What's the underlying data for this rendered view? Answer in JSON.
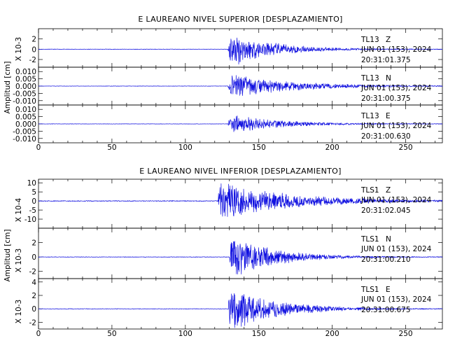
{
  "chart_data": [
    {
      "type": "line",
      "title": "E LAUREANO NIVEL SUPERIOR [DESPLAZAMIENTO]",
      "ylabel": "Amplitud [cm]",
      "xlim": [
        0,
        275
      ],
      "x_ticks": [
        "0",
        "50",
        "100",
        "150",
        "200",
        "250"
      ],
      "panels": [
        {
          "station": "TL13",
          "component": "Z",
          "date": "JUN 01 (153), 2024",
          "time": "20:31:01.375",
          "scale_label": "X 10-3",
          "ylim": [
            -3.5,
            4
          ],
          "y_ticks": [
            "2",
            "0",
            "-2"
          ],
          "y_tick_values": [
            2,
            0,
            -2
          ],
          "onset_s": 129,
          "peak": 3.8,
          "decay_s": 28,
          "noise": 0.05
        },
        {
          "station": "TL13",
          "component": "N",
          "date": "JUN 01 (153), 2024",
          "time": "20:31:00.375",
          "scale_label": "",
          "ylim": [
            -0.013,
            0.013
          ],
          "y_ticks": [
            "0.010",
            "0.005",
            "0.000",
            "-0.005",
            "-0.010"
          ],
          "y_tick_values": [
            0.01,
            0.005,
            0.0,
            -0.005,
            -0.01
          ],
          "onset_s": 129,
          "peak": 0.009,
          "decay_s": 40,
          "noise": 0.00015
        },
        {
          "station": "TL13",
          "component": "E",
          "date": "JUN 01 (153), 2024",
          "time": "20:31:00.630",
          "scale_label": "",
          "ylim": [
            -0.013,
            0.013
          ],
          "y_ticks": [
            "0.010",
            "0.005",
            "0.000",
            "-0.005",
            "-0.010"
          ],
          "y_tick_values": [
            0.01,
            0.005,
            0.0,
            -0.005,
            -0.01
          ],
          "onset_s": 129,
          "peak": 0.007,
          "decay_s": 32,
          "noise": 0.00015
        }
      ]
    },
    {
      "type": "line",
      "title": "E LAUREANO NIVEL INFERIOR [DESPLAZAMIENTO]",
      "ylabel": "Amplitud [cm]",
      "xlim": [
        0,
        275
      ],
      "x_ticks": [
        "0",
        "50",
        "100",
        "150",
        "200",
        "250"
      ],
      "panels": [
        {
          "station": "TLS1",
          "component": "Z",
          "date": "JUN 01 (153), 2024",
          "time": "20:31:02.045",
          "scale_label": "X 10-4",
          "ylim": [
            -15,
            12
          ],
          "y_ticks": [
            "10",
            "5",
            "0",
            "-5",
            "-10"
          ],
          "y_tick_values": [
            10,
            5,
            0,
            -5,
            -10
          ],
          "onset_s": 122,
          "peak": 11,
          "decay_s": 45,
          "noise": 0.25
        },
        {
          "station": "TLS1",
          "component": "N",
          "date": "JUN 01 (153), 2024",
          "time": "20:31:00.210",
          "scale_label": "X 10-3",
          "ylim": [
            -3,
            4
          ],
          "y_ticks": [
            "2",
            "0",
            "-2"
          ],
          "y_tick_values": [
            2,
            0,
            -2
          ],
          "onset_s": 130,
          "peak": 3.3,
          "decay_s": 28,
          "noise": 0.04
        },
        {
          "station": "TLS1",
          "component": "E",
          "date": "JUN 01 (153), 2024",
          "time": "20:31:00.675",
          "scale_label": "X 10-3",
          "ylim": [
            -3,
            4.5
          ],
          "y_ticks": [
            "4",
            "2",
            "0",
            "-2"
          ],
          "y_tick_values": [
            4,
            2,
            0,
            -2
          ],
          "onset_s": 129,
          "peak": 3.7,
          "decay_s": 30,
          "noise": 0.04
        }
      ]
    }
  ]
}
